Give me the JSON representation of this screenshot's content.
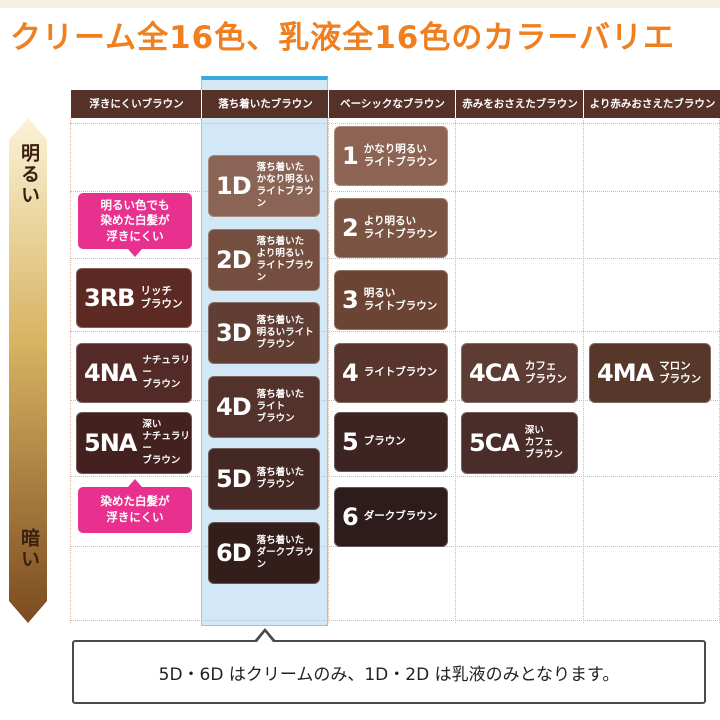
{
  "title": "クリーム全16色、乳液全16色のカラーバリエ",
  "columns": [
    {
      "label": "浮きにくいブラウン"
    },
    {
      "label": "落ち着いたブラウン"
    },
    {
      "label": "ベーシックなブラウン"
    },
    {
      "label": "赤みをおさえたブラウン"
    },
    {
      "label": "より赤みおさえたブラウン"
    }
  ],
  "scale": {
    "light": "明るい",
    "dark": "暗い"
  },
  "notes": {
    "pink_top": "明るい色でも\n染めた白髪が\n浮きにくい",
    "pink_bottom": "染めた白髪が\n浮きにくい"
  },
  "shades": {
    "c1": [
      {
        "code": "3RB",
        "name": "リッチ\nブラウン",
        "color": "#5c2a23"
      },
      {
        "code": "4NA",
        "name": "ナチュラリー\nブラウン",
        "color": "#532a26"
      },
      {
        "code": "5NA",
        "name": "深い\nナチュラリー\nブラウン",
        "color": "#43211f"
      }
    ],
    "c2": [
      {
        "code": "1D",
        "name": "落ち着いた\nかなり明るい\nライトブラウン",
        "color": "#8a6454"
      },
      {
        "code": "2D",
        "name": "落ち着いた\nより明るい\nライトブラウン",
        "color": "#744f40"
      },
      {
        "code": "3D",
        "name": "落ち着いた\n明るいライト\nブラウン",
        "color": "#613e33"
      },
      {
        "code": "4D",
        "name": "落ち着いた\nライト\nブラウン",
        "color": "#52322b"
      },
      {
        "code": "5D",
        "name": "落ち着いた\nブラウン",
        "color": "#432824"
      },
      {
        "code": "6D",
        "name": "落ち着いた\nダークブラウン",
        "color": "#331e1b"
      }
    ],
    "c3": [
      {
        "code": "1",
        "name": "かなり明るい\nライトブラウン",
        "color": "#8d6453"
      },
      {
        "code": "2",
        "name": "より明るい\nライトブラウン",
        "color": "#7b5343"
      },
      {
        "code": "3",
        "name": "明るい\nライトブラウン",
        "color": "#6c4434"
      },
      {
        "code": "4",
        "name": "ライトブラウン",
        "color": "#58352c"
      },
      {
        "code": "5",
        "name": "ブラウン",
        "color": "#3d2322"
      },
      {
        "code": "6",
        "name": "ダークブラウン",
        "color": "#2e1b1b"
      }
    ],
    "c4": [
      {
        "code": "4CA",
        "name": "カフェ\nブラウン",
        "color": "#5d3c33"
      },
      {
        "code": "5CA",
        "name": "深い\nカフェ\nブラウン",
        "color": "#4a2d28"
      }
    ],
    "c5": [
      {
        "code": "4MA",
        "name": "マロン\nブラウン",
        "color": "#563729"
      }
    ]
  },
  "footnote": "5D・6D はクリームのみ、1D・2D は乳液のみとなります。",
  "colors": {
    "title": "#f07f1f",
    "header_bg": "#553128",
    "highlight": "#d3e8f7",
    "highlight_border": "#39a9e0",
    "pink": "#e8308e"
  }
}
